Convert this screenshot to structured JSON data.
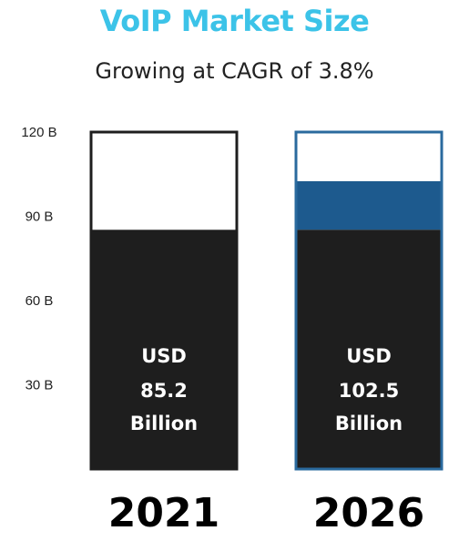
{
  "chart_data": {
    "type": "bar",
    "title": "VoIP Market Size",
    "subtitle": "Growing at CAGR of 3.8%",
    "categories": [
      "2021",
      "2026"
    ],
    "values": [
      85.2,
      102.5
    ],
    "bar_labels": [
      [
        "USD",
        "85.2",
        "Billion"
      ],
      [
        "USD",
        "102.5",
        "Billion"
      ]
    ],
    "y_ticks": [
      120,
      90,
      60,
      30
    ],
    "y_tick_labels": [
      "120 B",
      "90 B",
      "60 B",
      "30 B"
    ],
    "ylim": [
      0,
      120
    ],
    "xlabel": "",
    "ylabel": ""
  },
  "colors": {
    "title": "#3cc3e8",
    "bar_fill": "#1e1e1e",
    "growth_fill": "#1d5a8e",
    "bar_2026_border": "#2a6a9e"
  }
}
